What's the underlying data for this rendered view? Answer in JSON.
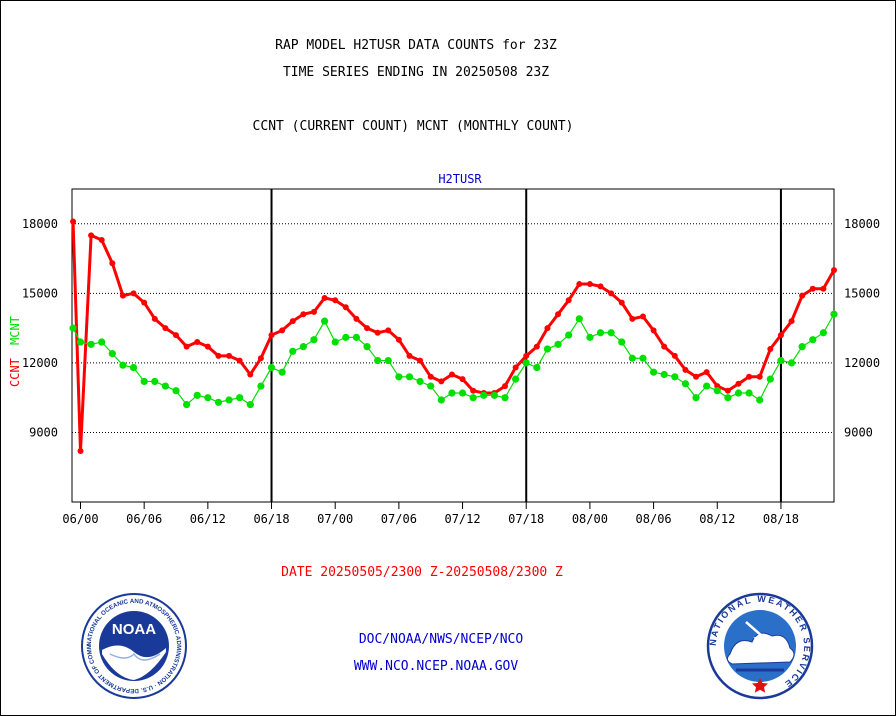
{
  "header": {
    "title_line1": "RAP MODEL H2TUSR DATA COUNTS for 23Z",
    "title_line2": "TIME SERIES ENDING IN 20250508 23Z",
    "subtitle": "CCNT (CURRENT COUNT) MCNT (MONTHLY COUNT)"
  },
  "footer": {
    "date_range": "DATE 20250505/2300 Z-20250508/2300 Z",
    "org_path": "DOC/NOAA/NWS/NCEP/NCO",
    "website": "WWW.NCO.NCEP.NOAA.GOV"
  },
  "logos": {
    "left": {
      "center_text": "NOAA",
      "ring_text": "NATIONAL OCEANIC AND ATMOSPHERIC ADMINISTRATION · U.S. DEPARTMENT OF COMMERCE"
    },
    "right": {
      "ring_text": "NATIONAL WEATHER SERVICE"
    }
  },
  "colors": {
    "ccnt": "#ff0000",
    "mcnt": "#00e000",
    "plot_title": "#0000cc",
    "footer_text": "#0000cc",
    "date_text": "#ff0000",
    "noaa_blue": "#1a3a9a",
    "nws_blue": "#2a70c8"
  },
  "chart_data": {
    "type": "line",
    "title": "H2TUSR",
    "ylabel_series": [
      "CCNT",
      "MCNT"
    ],
    "ylim": [
      6000,
      19500
    ],
    "yticks": [
      9000,
      12000,
      15000,
      18000
    ],
    "ytick_labels": [
      "9000",
      "12000",
      "15000",
      "18000"
    ],
    "xlim": [
      -0.8,
      71
    ],
    "xticks": [
      0,
      6,
      12,
      18,
      24,
      30,
      36,
      42,
      48,
      54,
      60,
      66
    ],
    "xtick_labels": [
      "06/00",
      "06/06",
      "06/12",
      "06/18",
      "07/00",
      "07/06",
      "07/12",
      "07/18",
      "08/00",
      "08/06",
      "08/12",
      "08/18"
    ],
    "day_dividers": [
      18,
      42,
      66
    ],
    "grid_y": true,
    "series": [
      {
        "name": "CCNT",
        "x": [
          -0.7,
          0,
          1,
          2,
          3,
          4,
          5,
          6,
          7,
          8,
          9,
          10,
          11,
          12,
          13,
          14,
          15,
          16,
          17,
          18,
          19,
          20,
          21,
          22,
          23,
          24,
          25,
          26,
          27,
          28,
          29,
          30,
          31,
          32,
          33,
          34,
          35,
          36,
          37,
          38,
          39,
          40,
          41,
          42,
          43,
          44,
          45,
          46,
          47,
          48,
          49,
          50,
          51,
          52,
          53,
          54,
          55,
          56,
          57,
          58,
          59,
          60,
          61,
          62,
          63,
          64,
          65,
          66,
          67,
          68,
          69,
          70,
          71
        ],
        "values": [
          18100,
          8200,
          17500,
          17300,
          16300,
          14900,
          15000,
          14600,
          13900,
          13500,
          13200,
          12700,
          12900,
          12700,
          12300,
          12300,
          12100,
          11500,
          12200,
          13200,
          13400,
          13800,
          14100,
          14200,
          14800,
          14700,
          14400,
          13900,
          13500,
          13300,
          13400,
          13000,
          12300,
          12100,
          11400,
          11200,
          11500,
          11300,
          10800,
          10700,
          10700,
          11000,
          11800,
          12300,
          12700,
          13500,
          14100,
          14700,
          15400,
          15400,
          15300,
          15000,
          14600,
          13900,
          14000,
          13400,
          12700,
          12300,
          11700,
          11400,
          11600,
          11000,
          10800,
          11100,
          11400,
          11400,
          12600,
          13200,
          13800,
          14900,
          15200,
          15200,
          16000
        ]
      },
      {
        "name": "MCNT",
        "x": [
          -0.7,
          0,
          1,
          2,
          3,
          4,
          5,
          6,
          7,
          8,
          9,
          10,
          11,
          12,
          13,
          14,
          15,
          16,
          17,
          18,
          19,
          20,
          21,
          22,
          23,
          24,
          25,
          26,
          27,
          28,
          29,
          30,
          31,
          32,
          33,
          34,
          35,
          36,
          37,
          38,
          39,
          40,
          41,
          42,
          43,
          44,
          45,
          46,
          47,
          48,
          49,
          50,
          51,
          52,
          53,
          54,
          55,
          56,
          57,
          58,
          59,
          60,
          61,
          62,
          63,
          64,
          65,
          66,
          67,
          68,
          69,
          70,
          71
        ],
        "values": [
          13500,
          12900,
          12800,
          12900,
          12400,
          11900,
          11800,
          11200,
          11200,
          11000,
          10800,
          10200,
          10600,
          10500,
          10300,
          10400,
          10500,
          10200,
          11000,
          11800,
          11600,
          12500,
          12700,
          13000,
          13800,
          12900,
          13100,
          13100,
          12700,
          12100,
          12100,
          11400,
          11400,
          11200,
          11000,
          10400,
          10700,
          10700,
          10500,
          10600,
          10600,
          10500,
          11300,
          12000,
          11800,
          12600,
          12800,
          13200,
          13900,
          13100,
          13300,
          13300,
          12900,
          12200,
          12200,
          11600,
          11500,
          11400,
          11100,
          10500,
          11000,
          10800,
          10500,
          10700,
          10700,
          10400,
          11300,
          12100,
          12000,
          12700,
          13000,
          13300,
          14100
        ]
      }
    ]
  }
}
